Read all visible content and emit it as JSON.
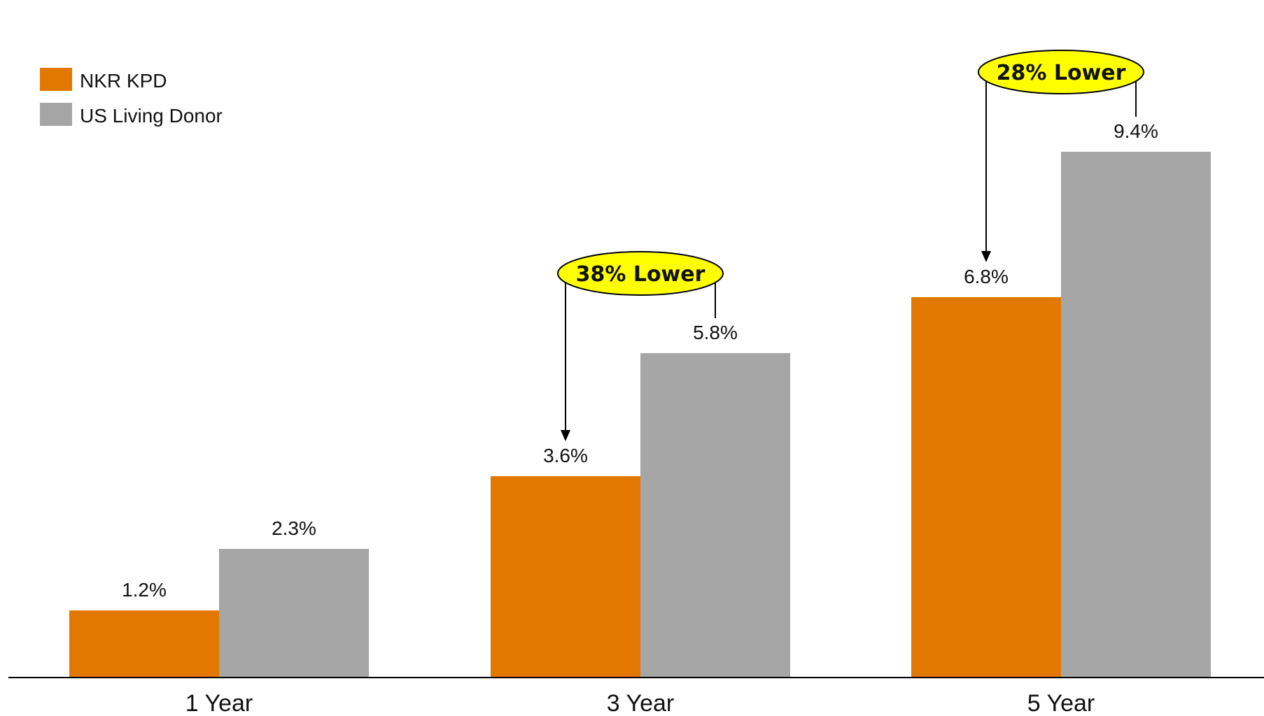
{
  "chart_data": {
    "type": "bar",
    "title": "",
    "xlabel": "",
    "ylabel": "",
    "categories": [
      "1 Year",
      "3 Year",
      "5 Year"
    ],
    "series": [
      {
        "name": "NKR KPD",
        "values": [
          1.2,
          3.6,
          6.8
        ],
        "labels": [
          "1.2%",
          "3.6%",
          "6.8%"
        ],
        "color": "#E37800"
      },
      {
        "name": "US Living Donor",
        "values": [
          2.3,
          5.8,
          9.4
        ],
        "labels": [
          "2.3%",
          "5.8%",
          "9.4%"
        ],
        "color": "#A6A6A6"
      }
    ],
    "ylim": [
      0,
      11
    ],
    "grid": false,
    "legend": "top-left",
    "annotations": [
      {
        "text": "38% Lower",
        "category": "3 Year",
        "from_series": "US Living Donor",
        "to_series": "NKR KPD",
        "fill": "#FFFF00"
      },
      {
        "text": "28% Lower",
        "category": "5 Year",
        "from_series": "US Living Donor",
        "to_series": "NKR KPD",
        "fill": "#FFFF00"
      }
    ]
  }
}
